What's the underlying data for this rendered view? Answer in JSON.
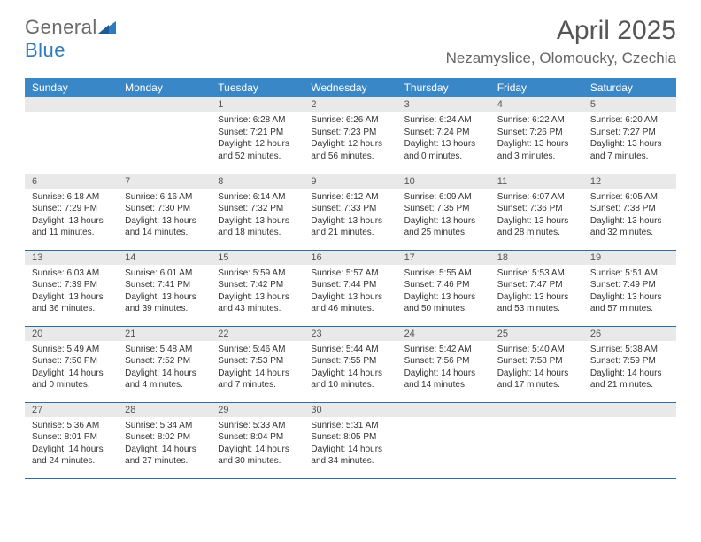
{
  "logo": {
    "general": "General",
    "blue": "Blue"
  },
  "title": "April 2025",
  "location": "Nezamyslice, Olomoucky, Czechia",
  "colors": {
    "header_bg": "#3a87c8",
    "header_text": "#ffffff",
    "daynum_bg": "#e9e9e9",
    "row_border": "#2e6da4",
    "logo_gray": "#6a6a6a",
    "logo_blue": "#2f7bbf"
  },
  "daysOfWeek": [
    "Sunday",
    "Monday",
    "Tuesday",
    "Wednesday",
    "Thursday",
    "Friday",
    "Saturday"
  ],
  "startOffset": 2,
  "days": [
    {
      "n": 1,
      "sunrise": "6:28 AM",
      "sunset": "7:21 PM",
      "daylight": "12 hours and 52 minutes."
    },
    {
      "n": 2,
      "sunrise": "6:26 AM",
      "sunset": "7:23 PM",
      "daylight": "12 hours and 56 minutes."
    },
    {
      "n": 3,
      "sunrise": "6:24 AM",
      "sunset": "7:24 PM",
      "daylight": "13 hours and 0 minutes."
    },
    {
      "n": 4,
      "sunrise": "6:22 AM",
      "sunset": "7:26 PM",
      "daylight": "13 hours and 3 minutes."
    },
    {
      "n": 5,
      "sunrise": "6:20 AM",
      "sunset": "7:27 PM",
      "daylight": "13 hours and 7 minutes."
    },
    {
      "n": 6,
      "sunrise": "6:18 AM",
      "sunset": "7:29 PM",
      "daylight": "13 hours and 11 minutes."
    },
    {
      "n": 7,
      "sunrise": "6:16 AM",
      "sunset": "7:30 PM",
      "daylight": "13 hours and 14 minutes."
    },
    {
      "n": 8,
      "sunrise": "6:14 AM",
      "sunset": "7:32 PM",
      "daylight": "13 hours and 18 minutes."
    },
    {
      "n": 9,
      "sunrise": "6:12 AM",
      "sunset": "7:33 PM",
      "daylight": "13 hours and 21 minutes."
    },
    {
      "n": 10,
      "sunrise": "6:09 AM",
      "sunset": "7:35 PM",
      "daylight": "13 hours and 25 minutes."
    },
    {
      "n": 11,
      "sunrise": "6:07 AM",
      "sunset": "7:36 PM",
      "daylight": "13 hours and 28 minutes."
    },
    {
      "n": 12,
      "sunrise": "6:05 AM",
      "sunset": "7:38 PM",
      "daylight": "13 hours and 32 minutes."
    },
    {
      "n": 13,
      "sunrise": "6:03 AM",
      "sunset": "7:39 PM",
      "daylight": "13 hours and 36 minutes."
    },
    {
      "n": 14,
      "sunrise": "6:01 AM",
      "sunset": "7:41 PM",
      "daylight": "13 hours and 39 minutes."
    },
    {
      "n": 15,
      "sunrise": "5:59 AM",
      "sunset": "7:42 PM",
      "daylight": "13 hours and 43 minutes."
    },
    {
      "n": 16,
      "sunrise": "5:57 AM",
      "sunset": "7:44 PM",
      "daylight": "13 hours and 46 minutes."
    },
    {
      "n": 17,
      "sunrise": "5:55 AM",
      "sunset": "7:46 PM",
      "daylight": "13 hours and 50 minutes."
    },
    {
      "n": 18,
      "sunrise": "5:53 AM",
      "sunset": "7:47 PM",
      "daylight": "13 hours and 53 minutes."
    },
    {
      "n": 19,
      "sunrise": "5:51 AM",
      "sunset": "7:49 PM",
      "daylight": "13 hours and 57 minutes."
    },
    {
      "n": 20,
      "sunrise": "5:49 AM",
      "sunset": "7:50 PM",
      "daylight": "14 hours and 0 minutes."
    },
    {
      "n": 21,
      "sunrise": "5:48 AM",
      "sunset": "7:52 PM",
      "daylight": "14 hours and 4 minutes."
    },
    {
      "n": 22,
      "sunrise": "5:46 AM",
      "sunset": "7:53 PM",
      "daylight": "14 hours and 7 minutes."
    },
    {
      "n": 23,
      "sunrise": "5:44 AM",
      "sunset": "7:55 PM",
      "daylight": "14 hours and 10 minutes."
    },
    {
      "n": 24,
      "sunrise": "5:42 AM",
      "sunset": "7:56 PM",
      "daylight": "14 hours and 14 minutes."
    },
    {
      "n": 25,
      "sunrise": "5:40 AM",
      "sunset": "7:58 PM",
      "daylight": "14 hours and 17 minutes."
    },
    {
      "n": 26,
      "sunrise": "5:38 AM",
      "sunset": "7:59 PM",
      "daylight": "14 hours and 21 minutes."
    },
    {
      "n": 27,
      "sunrise": "5:36 AM",
      "sunset": "8:01 PM",
      "daylight": "14 hours and 24 minutes."
    },
    {
      "n": 28,
      "sunrise": "5:34 AM",
      "sunset": "8:02 PM",
      "daylight": "14 hours and 27 minutes."
    },
    {
      "n": 29,
      "sunrise": "5:33 AM",
      "sunset": "8:04 PM",
      "daylight": "14 hours and 30 minutes."
    },
    {
      "n": 30,
      "sunrise": "5:31 AM",
      "sunset": "8:05 PM",
      "daylight": "14 hours and 34 minutes."
    }
  ],
  "labels": {
    "sunrise": "Sunrise:",
    "sunset": "Sunset:",
    "daylight": "Daylight:"
  }
}
